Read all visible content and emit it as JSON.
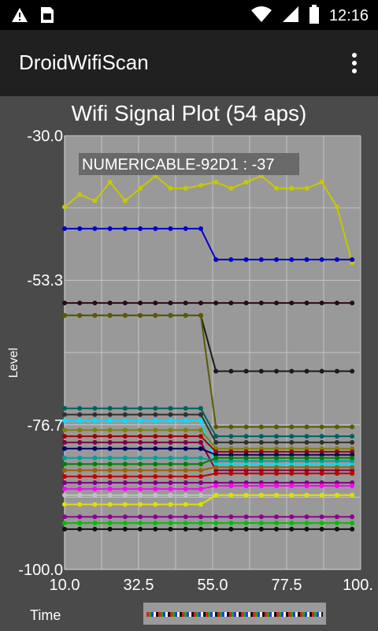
{
  "status_bar": {
    "time": "12:16",
    "left_icons": [
      "warning-icon",
      "sim-card-icon"
    ],
    "right_icons": [
      "wifi-icon",
      "signal-icon",
      "battery-icon"
    ]
  },
  "app_bar": {
    "title": "DroidWifiScan",
    "menu_icon": "overflow-menu-icon"
  },
  "chart_data": {
    "type": "line",
    "title": "Wifi Signal Plot (54 aps)",
    "ylabel": "Level",
    "xlabel": "Time",
    "xlim": [
      10,
      100
    ],
    "ylim": [
      -100,
      -30
    ],
    "x_ticks": [
      "10.0",
      "32.5",
      "55.0",
      "77.5",
      "100."
    ],
    "y_ticks": [
      "-30.0",
      "-53.3",
      "-76.7",
      "-100.0"
    ],
    "grid": true,
    "tooltip": "NUMERICABLE-92D1 : -37",
    "x": [
      10,
      14.6,
      19.2,
      23.8,
      28.4,
      33,
      37.6,
      42.2,
      46.8,
      51.4,
      56,
      60.6,
      65.2,
      69.8,
      74.4,
      79,
      83.6,
      88.2,
      92.8,
      97.4
    ],
    "series": [
      {
        "color": "#c8c800",
        "values": [
          -41.5,
          -39.5,
          -40.5,
          -37.5,
          -40.5,
          -38.5,
          -36.5,
          -38.5,
          -38.5,
          -38,
          -37.5,
          -38.5,
          -37.5,
          -36.5,
          -38.5,
          -38.5,
          -38.5,
          -37.5,
          -41.5,
          -50.5
        ]
      },
      {
        "color": "#0000c8",
        "values": [
          -45,
          -45,
          -45,
          -45,
          -45,
          -45,
          -45,
          -45,
          -45,
          -45,
          -50,
          -50,
          -50,
          -50,
          -50,
          -50,
          -50,
          -50,
          -50,
          -50
        ]
      },
      {
        "color": "#2a0a18",
        "values": [
          -57,
          -57,
          -57,
          -57,
          -57,
          -57,
          -57,
          -57,
          -57,
          -57,
          -57,
          -57,
          -57,
          -57,
          -57,
          -57,
          -57,
          -57,
          -57,
          -57
        ]
      },
      {
        "color": "#1a1a1a",
        "values": [
          -59,
          -59,
          -59,
          -59,
          -59,
          -59,
          -59,
          -59,
          -59,
          -59,
          -68,
          -68,
          -68,
          -68,
          -68,
          -68,
          -68,
          -68,
          -68,
          -68
        ]
      },
      {
        "color": "#5a5a00",
        "values": [
          -59,
          -59,
          -59,
          -59,
          -59,
          -59,
          -59,
          -59,
          -59,
          -59,
          -77,
          -77,
          -77,
          -77,
          -77,
          -77,
          -77,
          -77,
          -77,
          -77
        ]
      },
      {
        "color": "#006060",
        "values": [
          -74,
          -74,
          -74,
          -74,
          -74,
          -74,
          -74,
          -74,
          -74,
          -74,
          -78.5,
          -78.5,
          -78.5,
          -78.5,
          -78.5,
          -78.5,
          -78.5,
          -78.5,
          -78.5,
          -78.5
        ]
      },
      {
        "color": "#303030",
        "values": [
          -75,
          -75,
          -75,
          -75,
          -75,
          -75,
          -75,
          -75,
          -75,
          -75,
          -79.5,
          -79.5,
          -79.5,
          -79.5,
          -79.5,
          -79.5,
          -79.5,
          -79.5,
          -79.5,
          -79.5
        ]
      },
      {
        "color": "#00e0ff",
        "values": [
          -76,
          -76,
          -76,
          -76,
          -76,
          -76,
          -76,
          -76,
          -76,
          -76,
          -83,
          -83,
          -83,
          -83,
          -83,
          -83,
          -83,
          -83,
          -83,
          -83
        ]
      },
      {
        "color": "#808000",
        "values": [
          -77.5,
          -77.5,
          -77.5,
          -77.5,
          -77.5,
          -77.5,
          -77.5,
          -77.5,
          -77.5,
          -77.5,
          -80.5,
          -80.5,
          -80.5,
          -80.5,
          -80.5,
          -80.5,
          -80.5,
          -80.5,
          -80.5,
          -80.5
        ]
      },
      {
        "color": "#a00000",
        "values": [
          -78.5,
          -78.5,
          -78.5,
          -78.5,
          -78.5,
          -78.5,
          -78.5,
          -78.5,
          -78.5,
          -78.5,
          -81,
          -81,
          -81,
          -81,
          -81,
          -81,
          -81,
          -81,
          -81,
          -81
        ]
      },
      {
        "color": "#800040",
        "values": [
          -79.5,
          -79.5,
          -79.5,
          -79.5,
          -79.5,
          -79.5,
          -79.5,
          -79.5,
          -79.5,
          -79.5,
          -84,
          -84,
          -84,
          -84,
          -84,
          -84,
          -84,
          -84,
          -84,
          -84
        ]
      },
      {
        "color": "#000060",
        "values": [
          -80.5,
          -80.5,
          -80.5,
          -80.5,
          -80.5,
          -80.5,
          -80.5,
          -80.5,
          -80.5,
          -80.5,
          -81.5,
          -81.5,
          -81.5,
          -81.5,
          -81.5,
          -81.5,
          -81.5,
          -81.5,
          -81.5,
          -81.5
        ]
      },
      {
        "color": "#00a0a0",
        "values": [
          -82,
          -82,
          -82,
          -82,
          -82,
          -82,
          -82,
          -82,
          -82,
          -82,
          -82.5,
          -82.5,
          -82.5,
          -82.5,
          -82.5,
          -82.5,
          -82.5,
          -82.5,
          -82.5,
          -82.5
        ]
      },
      {
        "color": "#008000",
        "values": [
          -83,
          -83,
          -83,
          -83,
          -83,
          -83,
          -83,
          -83,
          -83,
          -83,
          -82,
          -82,
          -82,
          -82,
          -82,
          -82,
          -82,
          -82,
          -82,
          -82
        ]
      },
      {
        "color": "#a06000",
        "values": [
          -84,
          -84,
          -84,
          -84,
          -84,
          -84,
          -84,
          -84,
          -84,
          -84,
          -83.5,
          -83.5,
          -83.5,
          -83.5,
          -83.5,
          -83.5,
          -83.5,
          -83.5,
          -83.5,
          -83.5
        ]
      },
      {
        "color": "#c00000",
        "values": [
          -85,
          -85,
          -85,
          -85,
          -85,
          -85,
          -85,
          -85,
          -85,
          -85,
          -84.5,
          -84.5,
          -84.5,
          -84.5,
          -84.5,
          -84.5,
          -84.5,
          -84.5,
          -84.5,
          -84.5
        ]
      },
      {
        "color": "#800080",
        "values": [
          -86,
          -86,
          -86,
          -86,
          -86,
          -86,
          -86,
          -86,
          -86,
          -86,
          -86,
          -86,
          -86,
          -86,
          -86,
          -86,
          -86,
          -86,
          -86,
          -86
        ]
      },
      {
        "color": "#ff00ff",
        "values": [
          -87,
          -87,
          -87,
          -87,
          -87,
          -87,
          -87,
          -87,
          -87,
          -87,
          -86.5,
          -86.5,
          -86.5,
          -86.5,
          -86.5,
          -86.5,
          -86.5,
          -86.5,
          -86.5,
          -86.5
        ]
      },
      {
        "color": "#c0c0c0",
        "values": [
          -88,
          -88,
          -88,
          -88,
          -88,
          -88,
          -88,
          -88,
          -88,
          -88,
          -88,
          -88,
          -88,
          -88,
          -88,
          -88,
          -88,
          -88,
          -88,
          -88
        ]
      },
      {
        "color": "#e0e000",
        "values": [
          -89.5,
          -89.5,
          -89.5,
          -89.5,
          -89.5,
          -89.5,
          -89.5,
          -89.5,
          -89.5,
          -89.5,
          -88,
          -88,
          -88,
          -88,
          -88,
          -88,
          -88,
          -88,
          -88,
          -88
        ]
      },
      {
        "color": "#900090",
        "values": [
          -91.5,
          -91.5,
          -91.5,
          -91.5,
          -91.5,
          -91.5,
          -91.5,
          -91.5,
          -91.5,
          -91.5,
          -91.5,
          -91.5,
          -91.5,
          -91.5,
          -91.5,
          -91.5,
          -91.5,
          -91.5,
          -91.5,
          -91.5
        ]
      },
      {
        "color": "#00c000",
        "values": [
          -92.5,
          -92.5,
          -92.5,
          -92.5,
          -92.5,
          -92.5,
          -92.5,
          -92.5,
          -92.5,
          -92.5,
          -92.5,
          -92.5,
          -92.5,
          -92.5,
          -92.5,
          -92.5,
          -92.5,
          -92.5,
          -92.5,
          -92.5
        ]
      },
      {
        "color": "#101010",
        "values": [
          -93.5,
          -93.5,
          -93.5,
          -93.5,
          -93.5,
          -93.5,
          -93.5,
          -93.5,
          -93.5,
          -93.5,
          -93.5,
          -93.5,
          -93.5,
          -93.5,
          -93.5,
          -93.5,
          -93.5,
          -93.5,
          -93.5,
          -93.5
        ]
      }
    ]
  },
  "colors": {
    "plot_bg": "#999999",
    "panel_bg": "#4a4a4a",
    "app_bar_bg": "#202020",
    "status_bar_bg": "#000000",
    "grid": "#c4c4c4"
  }
}
